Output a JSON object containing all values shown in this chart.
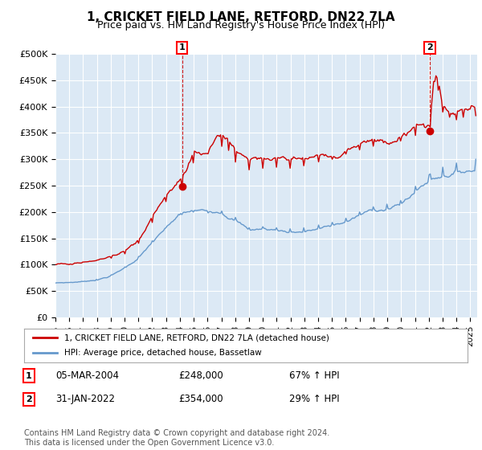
{
  "title": "1, CRICKET FIELD LANE, RETFORD, DN22 7LA",
  "subtitle": "Price paid vs. HM Land Registry's House Price Index (HPI)",
  "title_fontsize": 11,
  "subtitle_fontsize": 9,
  "ylim": [
    0,
    500000
  ],
  "yticks": [
    0,
    50000,
    100000,
    150000,
    200000,
    250000,
    300000,
    350000,
    400000,
    450000,
    500000
  ],
  "ytick_labels": [
    "£0",
    "£50K",
    "£100K",
    "£150K",
    "£200K",
    "£250K",
    "£300K",
    "£350K",
    "£400K",
    "£450K",
    "£500K"
  ],
  "xlim_start": 1995.0,
  "xlim_end": 2025.5,
  "xtick_years": [
    1995,
    1996,
    1997,
    1998,
    1999,
    2000,
    2001,
    2002,
    2003,
    2004,
    2005,
    2006,
    2007,
    2008,
    2009,
    2010,
    2011,
    2012,
    2013,
    2014,
    2015,
    2016,
    2017,
    2018,
    2019,
    2020,
    2021,
    2022,
    2023,
    2024,
    2025
  ],
  "red_line_color": "#cc0000",
  "blue_line_color": "#6699cc",
  "plot_bg_color": "#dce9f5",
  "grid_color": "#ffffff",
  "bg_color": "#ffffff",
  "sale1_x": 2004.17,
  "sale1_y": 248000,
  "sale1_label": "1",
  "sale2_x": 2022.08,
  "sale2_y": 354000,
  "sale2_label": "2",
  "legend_red_label": "1, CRICKET FIELD LANE, RETFORD, DN22 7LA (detached house)",
  "legend_blue_label": "HPI: Average price, detached house, Bassetlaw",
  "table_rows": [
    {
      "num": "1",
      "date": "05-MAR-2004",
      "price": "£248,000",
      "hpi": "67% ↑ HPI"
    },
    {
      "num": "2",
      "date": "31-JAN-2022",
      "price": "£354,000",
      "hpi": "29% ↑ HPI"
    }
  ],
  "footnote": "Contains HM Land Registry data © Crown copyright and database right 2024.\nThis data is licensed under the Open Government Licence v3.0.",
  "footnote_fontsize": 7
}
